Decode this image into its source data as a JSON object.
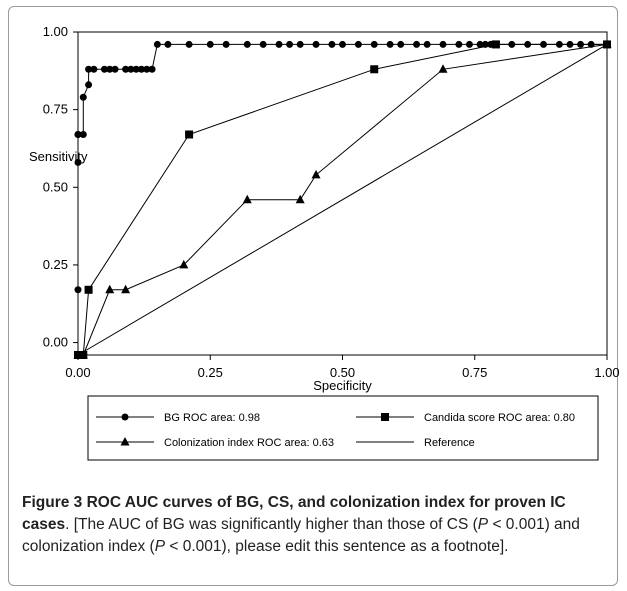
{
  "chart_data": {
    "type": "line",
    "xlabel": "Specificity",
    "ylabel": "Sensitivity",
    "xlim": [
      0,
      1
    ],
    "ylim": [
      -0.04,
      1
    ],
    "x_ticks": [
      "0.00",
      "0.25",
      "0.50",
      "0.75",
      "1.00"
    ],
    "y_ticks": [
      "0.00",
      "0.25",
      "0.50",
      "0.75",
      "1.00"
    ],
    "grid": false,
    "legend_position": "bottom",
    "series": [
      {
        "name": "BG ROC area: 0.98",
        "marker": "circle",
        "x": [
          0,
          0,
          0,
          0,
          0,
          0.01,
          0.01,
          0.02,
          0.02,
          0.03,
          0.05,
          0.06,
          0.07,
          0.09,
          0.1,
          0.11,
          0.12,
          0.13,
          0.14,
          0.15,
          0.17,
          0.21,
          0.25,
          0.28,
          0.32,
          0.35,
          0.38,
          0.4,
          0.42,
          0.45,
          0.48,
          0.5,
          0.53,
          0.56,
          0.59,
          0.61,
          0.64,
          0.66,
          0.69,
          0.72,
          0.74,
          0.76,
          0.77,
          0.78,
          0.79,
          0.82,
          0.85,
          0.88,
          0.91,
          0.93,
          0.95,
          0.97,
          1.0
        ],
        "y": [
          -0.04,
          0.17,
          0.58,
          0.67,
          0.67,
          0.67,
          0.79,
          0.83,
          0.88,
          0.88,
          0.88,
          0.88,
          0.88,
          0.88,
          0.88,
          0.88,
          0.88,
          0.88,
          0.88,
          0.96,
          0.96,
          0.96,
          0.96,
          0.96,
          0.96,
          0.96,
          0.96,
          0.96,
          0.96,
          0.96,
          0.96,
          0.96,
          0.96,
          0.96,
          0.96,
          0.96,
          0.96,
          0.96,
          0.96,
          0.96,
          0.96,
          0.96,
          0.96,
          0.96,
          0.96,
          0.96,
          0.96,
          0.96,
          0.96,
          0.96,
          0.96,
          0.96,
          0.96
        ]
      },
      {
        "name": "Candida score ROC area: 0.80",
        "marker": "square",
        "x": [
          0,
          0.01,
          0.02,
          0.21,
          0.56,
          0.79,
          1.0
        ],
        "y": [
          -0.04,
          -0.04,
          0.17,
          0.67,
          0.88,
          0.96,
          0.96
        ]
      },
      {
        "name": "Colonization index ROC area: 0.63",
        "marker": "triangle",
        "x": [
          0,
          0.01,
          0.06,
          0.09,
          0.2,
          0.32,
          0.42,
          0.45,
          0.69,
          1.0
        ],
        "y": [
          -0.04,
          -0.04,
          0.17,
          0.17,
          0.25,
          0.46,
          0.46,
          0.54,
          0.88,
          0.96
        ]
      },
      {
        "name": "Reference",
        "marker": "none",
        "x": [
          0,
          1
        ],
        "y": [
          -0.04,
          0.96
        ]
      }
    ]
  },
  "caption": {
    "figure_label": "Figure 3",
    "title": "ROC AUC curves of BG, CS, and colonization index for proven IC cases",
    "text_1": "[The AUC of BG was significantly higher than those of CS (",
    "p_symbol": "P",
    "text_2": " < 0.001) and colonization index (",
    "text_3": " < 0.001), please edit this sentence as a footnote]."
  }
}
